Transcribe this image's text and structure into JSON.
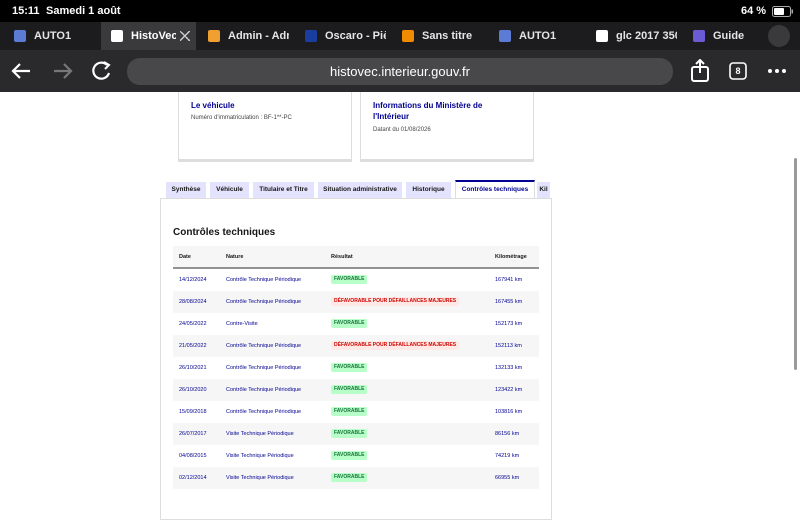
{
  "status_bar": {
    "time": "15:11",
    "date": "Samedi 1 août",
    "battery": "64 %"
  },
  "browser": {
    "tabs": [
      "AUTO1",
      "HistoVec",
      "Admin - Adm",
      "Oscaro - Piè",
      "Sans titre",
      "AUTO1",
      "glc 2017 350",
      "Guide"
    ],
    "url": "histovec.interieur.gouv.fr",
    "tab_count": "8"
  },
  "cards": [
    {
      "title": "Le véhicule",
      "text": "Numéro d'immatriculation : BF-1**-PC"
    },
    {
      "title": "Informations du Ministère de l'Intérieur",
      "text": "Datant du 01/08/2026"
    }
  ],
  "section_tabs": [
    "Synthèse",
    "Véhicule",
    "Titulaire et Titre",
    "Situation administrative",
    "Historique",
    "Contrôles techniques",
    "Kil"
  ],
  "panel": {
    "title": "Contrôles techniques",
    "table": {
      "headers": [
        "Date",
        "Nature",
        "Résultat",
        "Kilométrage"
      ],
      "rows": [
        [
          "14/12/2024",
          "Contrôle Technique Périodique",
          "FAVORABLE",
          "167941 km"
        ],
        [
          "28/08/2024",
          "Contrôle Technique Périodique",
          "DÉFAVORABLE POUR DÉFAILLANCES MAJEURES",
          "167455 km"
        ],
        [
          "24/05/2022",
          "Contre-Visite",
          "FAVORABLE",
          "152173 km"
        ],
        [
          "21/05/2022",
          "Contrôle Technique Périodique",
          "DÉFAVORABLE POUR DÉFAILLANCES MAJEURES",
          "152113 km"
        ],
        [
          "26/10/2021",
          "Contrôle Technique Périodique",
          "FAVORABLE",
          "132133 km"
        ],
        [
          "26/10/2020",
          "Contrôle Technique Périodique",
          "FAVORABLE",
          "123422 km"
        ],
        [
          "15/09/2018",
          "Contrôle Technique Périodique",
          "FAVORABLE",
          "103816 km"
        ],
        [
          "26/07/2017",
          "Visite Technique Périodique",
          "FAVORABLE",
          "86156 km"
        ],
        [
          "04/08/2015",
          "Visite Technique Périodique",
          "FAVORABLE",
          "74219 km"
        ],
        [
          "02/12/2014",
          "Visite Technique Périodique",
          "FAVORABLE",
          "66955 km"
        ]
      ]
    }
  }
}
